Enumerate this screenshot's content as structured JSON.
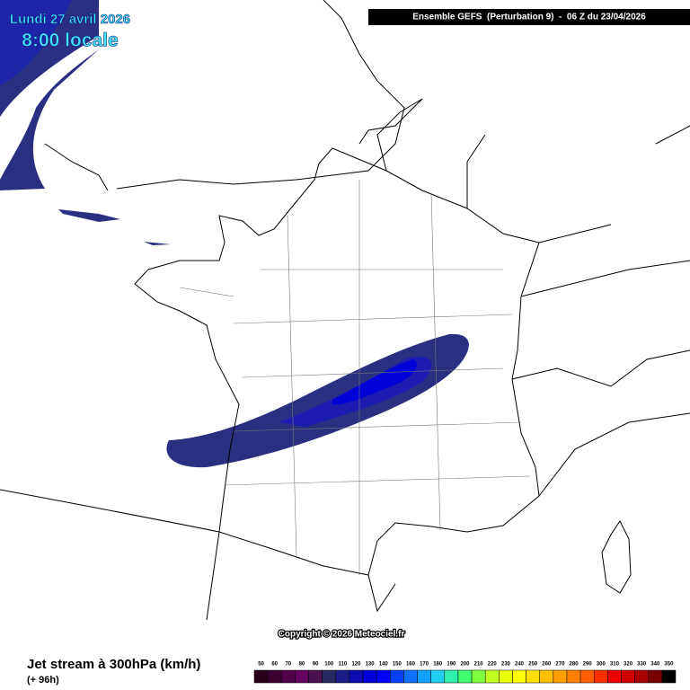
{
  "title": {
    "date": "Lundi 27 avril 2026",
    "time": "8:00 locale"
  },
  "header": "Ensemble GEFS  (Perturbation 9)  -  06 Z du 23/04/2026",
  "copyright": "Copyright © 2026 Meteociel.fr",
  "footer": {
    "label": "Jet stream à 300hPa (km/h)",
    "lead": "(+ 96h)"
  },
  "legend": {
    "values": [
      50,
      60,
      70,
      80,
      90,
      100,
      110,
      120,
      130,
      140,
      150,
      160,
      170,
      180,
      190,
      200,
      210,
      220,
      230,
      240,
      250,
      260,
      270,
      280,
      290,
      300,
      310,
      320,
      330,
      340,
      350
    ],
    "colors": [
      "#2a0018",
      "#3c0030",
      "#500048",
      "#640060",
      "#4a1050",
      "#282860",
      "#1c1c88",
      "#0c0cb0",
      "#0000d8",
      "#0000ff",
      "#0840ff",
      "#1070ff",
      "#10a0ff",
      "#20d0f0",
      "#30f0b0",
      "#40ff70",
      "#80ff40",
      "#c0ff20",
      "#e8ff00",
      "#ffff00",
      "#ffe000",
      "#ffc000",
      "#ffa000",
      "#ff8000",
      "#ff6000",
      "#ff3000",
      "#f00000",
      "#d00000",
      "#a80000",
      "#780000",
      "#000000"
    ]
  }
}
